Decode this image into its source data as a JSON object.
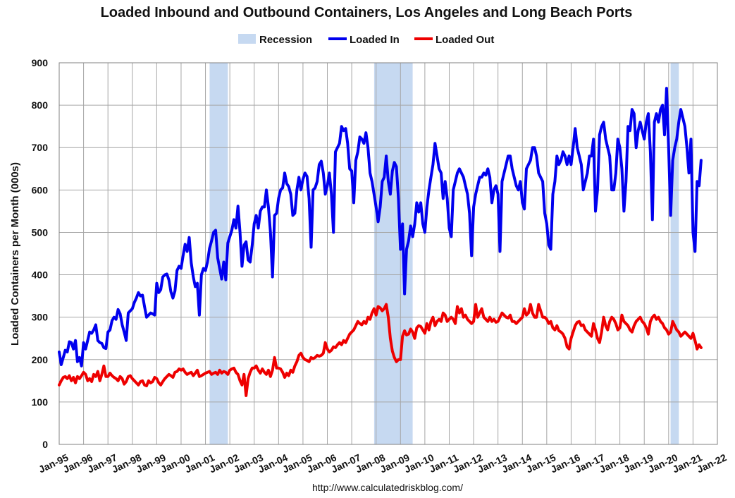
{
  "chart_data": {
    "type": "line",
    "title": "Loaded Inbound and Outbound Containers, Los Angeles and Long Beach Ports",
    "ylabel": "Loaded Containers per Month (000s)",
    "xlabel": "",
    "source": "http://www.calculatedriskblog.com/",
    "ylim": [
      0,
      900
    ],
    "yticks": [
      "0",
      "100",
      "200",
      "300",
      "400",
      "500",
      "600",
      "700",
      "800",
      "900"
    ],
    "x_start_year": 1995,
    "x_end_year": 2022,
    "xticks": [
      "Jan-95",
      "Jan-96",
      "Jan-97",
      "Jan-98",
      "Jan-99",
      "Jan-00",
      "Jan-01",
      "Jan-02",
      "Jan-03",
      "Jan-04",
      "Jan-05",
      "Jan-06",
      "Jan-07",
      "Jan-08",
      "Jan-09",
      "Jan-10",
      "Jan-11",
      "Jan-12",
      "Jan-13",
      "Jan-14",
      "Jan-15",
      "Jan-16",
      "Jan-17",
      "Jan-18",
      "Jan-19",
      "Jan-20",
      "Jan-21",
      "Jan-22"
    ],
    "legend": {
      "recession": "Recession",
      "series_in": "Loaded In",
      "series_out": "Loaded Out"
    },
    "colors": {
      "recession": "#c6d9f1",
      "loaded_in": "#0000ee",
      "loaded_out": "#ee0000",
      "grid": "#a6a6a6"
    },
    "recessions": [
      {
        "start": 2001.17,
        "end": 2001.92
      },
      {
        "start": 2007.92,
        "end": 2009.5
      },
      {
        "start": 2020.08,
        "end": 2020.42
      }
    ],
    "series": [
      {
        "name": "Loaded In",
        "comment": "monthly values, first = Jan-95",
        "values": [
          218,
          188,
          205,
          222,
          218,
          242,
          240,
          225,
          245,
          195,
          205,
          185,
          240,
          225,
          245,
          265,
          262,
          270,
          282,
          245,
          240,
          238,
          228,
          226,
          265,
          270,
          292,
          300,
          295,
          318,
          308,
          282,
          265,
          245,
          310,
          315,
          320,
          335,
          345,
          358,
          350,
          352,
          325,
          300,
          305,
          310,
          308,
          305,
          380,
          358,
          365,
          395,
          400,
          402,
          388,
          360,
          345,
          362,
          410,
          420,
          415,
          445,
          472,
          455,
          488,
          428,
          395,
          372,
          380,
          305,
          400,
          415,
          410,
          430,
          462,
          480,
          500,
          505,
          440,
          415,
          390,
          430,
          388,
          475,
          490,
          505,
          530,
          510,
          562,
          500,
          420,
          470,
          478,
          435,
          430,
          470,
          520,
          540,
          510,
          550,
          560,
          560,
          600,
          560,
          500,
          395,
          540,
          545,
          580,
          600,
          605,
          640,
          615,
          608,
          590,
          540,
          545,
          600,
          630,
          600,
          625,
          640,
          632,
          580,
          465,
          600,
          605,
          620,
          660,
          668,
          640,
          590,
          610,
          640,
          590,
          500,
          690,
          700,
          710,
          750,
          740,
          745,
          710,
          650,
          645,
          570,
          670,
          690,
          725,
          720,
          710,
          735,
          700,
          640,
          620,
          590,
          560,
          525,
          560,
          620,
          630,
          680,
          620,
          590,
          645,
          665,
          655,
          580,
          460,
          520,
          355,
          460,
          480,
          515,
          490,
          520,
          570,
          548,
          570,
          520,
          500,
          560,
          600,
          630,
          660,
          710,
          680,
          650,
          640,
          580,
          620,
          580,
          510,
          490,
          600,
          620,
          640,
          650,
          640,
          630,
          610,
          590,
          545,
          445,
          560,
          590,
          610,
          630,
          630,
          640,
          635,
          650,
          630,
          570,
          600,
          610,
          590,
          455,
          620,
          640,
          660,
          680,
          680,
          650,
          630,
          610,
          600,
          620,
          570,
          555,
          650,
          660,
          670,
          700,
          700,
          680,
          640,
          630,
          620,
          545,
          520,
          470,
          460,
          590,
          620,
          680,
          660,
          670,
          690,
          680,
          660,
          680,
          660,
          700,
          745,
          700,
          680,
          660,
          600,
          620,
          640,
          680,
          680,
          720,
          550,
          600,
          730,
          750,
          760,
          720,
          700,
          680,
          600,
          600,
          640,
          720,
          700,
          650,
          550,
          620,
          750,
          740,
          790,
          780,
          700,
          740,
          760,
          740,
          720,
          760,
          780,
          690,
          530,
          760,
          780,
          760,
          790,
          800,
          730,
          840,
          700,
          540,
          670,
          700,
          720,
          760,
          790,
          770,
          750,
          700,
          640,
          720,
          500,
          455,
          620,
          610,
          670
        ]
      },
      {
        "name": "Loaded Out",
        "comment": "monthly values, first = Jan-95",
        "values": [
          140,
          150,
          158,
          160,
          155,
          162,
          150,
          158,
          145,
          160,
          155,
          162,
          170,
          165,
          150,
          155,
          148,
          165,
          160,
          172,
          150,
          165,
          185,
          160,
          160,
          168,
          162,
          158,
          155,
          150,
          160,
          155,
          142,
          148,
          160,
          162,
          155,
          150,
          145,
          140,
          148,
          150,
          140,
          138,
          150,
          145,
          148,
          158,
          155,
          145,
          140,
          148,
          155,
          160,
          165,
          162,
          158,
          170,
          172,
          178,
          175,
          178,
          170,
          165,
          168,
          170,
          162,
          168,
          175,
          160,
          162,
          165,
          168,
          170,
          172,
          165,
          168,
          170,
          165,
          175,
          168,
          172,
          170,
          165,
          175,
          178,
          180,
          170,
          165,
          150,
          140,
          165,
          115,
          155,
          170,
          180,
          180,
          185,
          175,
          168,
          178,
          170,
          165,
          175,
          160,
          175,
          205,
          180,
          180,
          178,
          170,
          158,
          168,
          162,
          175,
          170,
          185,
          195,
          210,
          215,
          205,
          200,
          198,
          195,
          205,
          202,
          205,
          210,
          208,
          210,
          215,
          240,
          225,
          218,
          222,
          230,
          228,
          235,
          240,
          235,
          245,
          240,
          250,
          260,
          265,
          270,
          280,
          290,
          285,
          282,
          290,
          285,
          300,
          295,
          310,
          320,
          305,
          325,
          322,
          315,
          320,
          330,
          300,
          250,
          220,
          205,
          195,
          200,
          200,
          255,
          268,
          258,
          260,
          272,
          265,
          250,
          275,
          280,
          278,
          270,
          262,
          285,
          270,
          290,
          300,
          280,
          290,
          295,
          290,
          310,
          305,
          290,
          295,
          300,
          295,
          285,
          325,
          310,
          320,
          300,
          305,
          295,
          290,
          285,
          290,
          330,
          300,
          310,
          320,
          300,
          295,
          290,
          300,
          290,
          295,
          288,
          290,
          300,
          310,
          305,
          300,
          298,
          305,
          290,
          290,
          285,
          290,
          295,
          300,
          320,
          305,
          310,
          330,
          310,
          300,
          300,
          330,
          315,
          300,
          300,
          295,
          285,
          290,
          275,
          270,
          280,
          268,
          265,
          260,
          250,
          230,
          225,
          250,
          265,
          280,
          288,
          290,
          280,
          282,
          270,
          265,
          260,
          255,
          285,
          270,
          250,
          240,
          265,
          300,
          280,
          270,
          290,
          300,
          295,
          285,
          270,
          275,
          305,
          290,
          285,
          280,
          270,
          265,
          280,
          290,
          295,
          300,
          290,
          285,
          275,
          260,
          290,
          300,
          305,
          295,
          300,
          290,
          285,
          275,
          270,
          260,
          265,
          290,
          280,
          270,
          265,
          255,
          260,
          265,
          260,
          255,
          250,
          262,
          245,
          225,
          235,
          228
        ]
      }
    ]
  }
}
